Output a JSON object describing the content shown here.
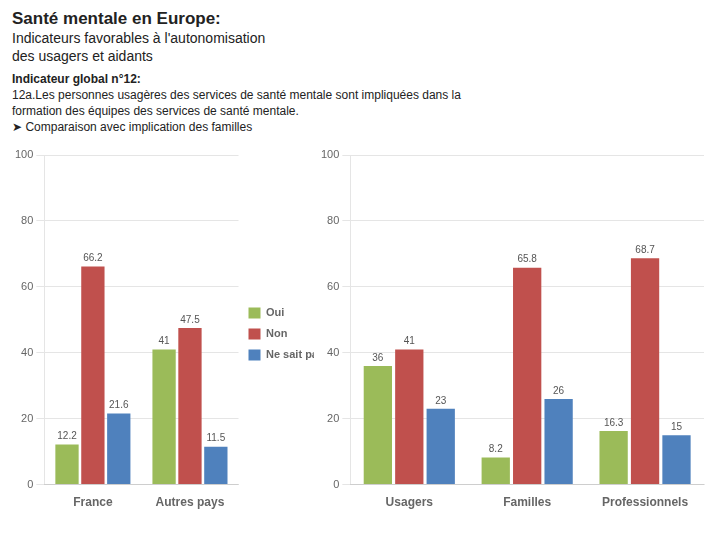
{
  "title": "Santé mentale en Europe:",
  "subtitle": [
    "Indicateurs favorables à l'autonomisation",
    "des usagers et aidants"
  ],
  "annotations": [
    "Indicateur global n°12:",
    "12a.Les personnes usagères des services de santé mentale sont impliquées dans la",
    "formation des équipes des services de santé mentale.",
    "➤  Comparaison avec implication des familles"
  ],
  "chart_data": [
    {
      "type": "bar",
      "categories": [
        "France",
        "Autres pays"
      ],
      "series": [
        {
          "name": "Oui",
          "color": "#9bbb59",
          "values": [
            12.2,
            41.0
          ]
        },
        {
          "name": "Non",
          "color": "#c0504d",
          "values": [
            66.2,
            47.5
          ]
        },
        {
          "name": "Ne sait pas",
          "color": "#4f81bd",
          "values": [
            21.6,
            11.5
          ]
        }
      ],
      "ylim": [
        0,
        100
      ],
      "yticks": [
        0,
        20,
        40,
        60,
        80,
        100
      ],
      "grid": true,
      "data_labels": true,
      "legend": "right"
    },
    {
      "type": "bar",
      "categories": [
        "Usagers",
        "Familles",
        "Professionnels"
      ],
      "series": [
        {
          "name": "Oui",
          "color": "#9bbb59",
          "values": [
            36.0,
            8.2,
            16.3
          ]
        },
        {
          "name": "Non",
          "color": "#c0504d",
          "values": [
            41.0,
            65.8,
            68.7
          ]
        },
        {
          "name": "Ne sait pas",
          "color": "#4f81bd",
          "values": [
            23.0,
            26.0,
            15.0
          ]
        }
      ],
      "ylim": [
        0,
        100
      ],
      "yticks": [
        0,
        20,
        40,
        60,
        80,
        100
      ],
      "grid": true,
      "data_labels": true
    }
  ]
}
